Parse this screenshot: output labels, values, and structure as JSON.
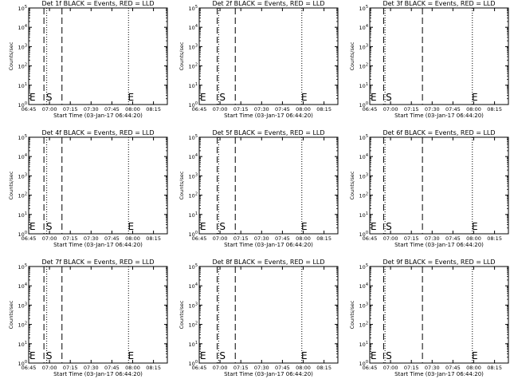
{
  "chart_data": [
    {
      "type": "line",
      "title": "Det 1f BLACK = Events, RED = LLD",
      "xlabel": "Start Time (03-Jan-17 06:44:20)",
      "ylabel": "Counts/sec",
      "x_ticks": [
        "06:45",
        "07:00",
        "07:15",
        "07:30",
        "07:45",
        "08:00",
        "08:15"
      ],
      "y_ticks": [
        {
          "base": "10",
          "exp": "0"
        },
        {
          "base": "10",
          "exp": "1"
        },
        {
          "base": "10",
          "exp": "2"
        },
        {
          "base": "10",
          "exp": "3"
        },
        {
          "base": "10",
          "exp": "4"
        },
        {
          "base": "10",
          "exp": "5"
        }
      ],
      "y_scale": "log",
      "ylim": [
        1,
        100000
      ],
      "dashed_lines": [
        "06:56",
        "07:09"
      ],
      "dotted_lines": [
        "06:58",
        "07:57"
      ],
      "markers": [
        {
          "text": "E",
          "x": "06:45"
        },
        {
          "text": "S",
          "x": "06:57"
        },
        {
          "text": "E",
          "x": "07:56"
        }
      ]
    },
    {
      "type": "line",
      "title": "Det 2f BLACK = Events, RED = LLD",
      "xlabel": "Start Time (03-Jan-17 06:44:20)",
      "ylabel": "Counts/sec",
      "x_ticks": [
        "06:45",
        "07:00",
        "07:15",
        "07:30",
        "07:45",
        "08:00",
        "08:15"
      ],
      "y_ticks": [
        {
          "base": "10",
          "exp": "0"
        },
        {
          "base": "10",
          "exp": "1"
        },
        {
          "base": "10",
          "exp": "2"
        },
        {
          "base": "10",
          "exp": "3"
        },
        {
          "base": "10",
          "exp": "4"
        },
        {
          "base": "10",
          "exp": "5"
        }
      ],
      "y_scale": "log",
      "ylim": [
        1,
        100000
      ],
      "dashed_lines": [
        "06:58",
        "07:11"
      ],
      "dotted_lines": [
        "06:59",
        "07:59"
      ],
      "markers": [
        {
          "text": "E",
          "x": "06:45"
        },
        {
          "text": "S",
          "x": "06:59"
        },
        {
          "text": "E",
          "x": "07:58"
        }
      ]
    },
    {
      "type": "line",
      "title": "Det 3f BLACK = Events, RED = LLD",
      "xlabel": "Start Time (03-Jan-17 06:44:20)",
      "ylabel": "Counts/sec",
      "x_ticks": [
        "06:45",
        "07:00",
        "07:15",
        "07:30",
        "07:45",
        "08:00",
        "08:15"
      ],
      "y_ticks": [
        {
          "base": "10",
          "exp": "0"
        },
        {
          "base": "10",
          "exp": "1"
        },
        {
          "base": "10",
          "exp": "2"
        },
        {
          "base": "10",
          "exp": "3"
        },
        {
          "base": "10",
          "exp": "4"
        },
        {
          "base": "10",
          "exp": "5"
        }
      ],
      "y_scale": "log",
      "ylim": [
        1,
        100000
      ],
      "dashed_lines": [
        "06:55",
        "07:23"
      ],
      "dotted_lines": [
        "06:56",
        "07:59"
      ],
      "markers": [
        {
          "text": "E",
          "x": "06:45"
        },
        {
          "text": "S",
          "x": "06:56"
        },
        {
          "text": "E",
          "x": "07:58"
        }
      ]
    },
    {
      "type": "line",
      "title": "Det 4f BLACK = Events, RED = LLD",
      "xlabel": "Start Time (03-Jan-17 06:44:20)",
      "ylabel": "Counts/sec",
      "x_ticks": [
        "06:45",
        "07:00",
        "07:15",
        "07:30",
        "07:45",
        "08:00",
        "08:15"
      ],
      "y_ticks": [
        {
          "base": "10",
          "exp": "0"
        },
        {
          "base": "10",
          "exp": "1"
        },
        {
          "base": "10",
          "exp": "2"
        },
        {
          "base": "10",
          "exp": "3"
        },
        {
          "base": "10",
          "exp": "4"
        },
        {
          "base": "10",
          "exp": "5"
        }
      ],
      "y_scale": "log",
      "ylim": [
        1,
        100000
      ],
      "dashed_lines": [
        "06:56",
        "07:09"
      ],
      "dotted_lines": [
        "06:58",
        "07:57"
      ],
      "markers": [
        {
          "text": "E",
          "x": "06:45"
        },
        {
          "text": "S",
          "x": "06:57"
        },
        {
          "text": "E",
          "x": "07:56"
        }
      ]
    },
    {
      "type": "line",
      "title": "Det 5f BLACK = Events, RED = LLD",
      "xlabel": "Start Time (03-Jan-17 06:44:20)",
      "ylabel": "Counts/sec",
      "x_ticks": [
        "06:45",
        "07:00",
        "07:15",
        "07:30",
        "07:45",
        "08:00",
        "08:15"
      ],
      "y_ticks": [
        {
          "base": "10",
          "exp": "0"
        },
        {
          "base": "10",
          "exp": "1"
        },
        {
          "base": "10",
          "exp": "2"
        },
        {
          "base": "10",
          "exp": "3"
        },
        {
          "base": "10",
          "exp": "4"
        },
        {
          "base": "10",
          "exp": "5"
        }
      ],
      "y_scale": "log",
      "ylim": [
        1,
        100000
      ],
      "dashed_lines": [
        "06:58",
        "07:11"
      ],
      "dotted_lines": [
        "06:59",
        "07:59"
      ],
      "markers": [
        {
          "text": "E",
          "x": "06:45"
        },
        {
          "text": "S",
          "x": "06:59"
        },
        {
          "text": "E",
          "x": "07:58"
        }
      ]
    },
    {
      "type": "line",
      "title": "Det 6f BLACK = Events, RED = LLD",
      "xlabel": "Start Time (03-Jan-17 06:44:20)",
      "ylabel": "Counts/sec",
      "x_ticks": [
        "06:45",
        "07:00",
        "07:15",
        "07:30",
        "07:45",
        "08:00",
        "08:15"
      ],
      "y_ticks": [
        {
          "base": "10",
          "exp": "0"
        },
        {
          "base": "10",
          "exp": "1"
        },
        {
          "base": "10",
          "exp": "2"
        },
        {
          "base": "10",
          "exp": "3"
        },
        {
          "base": "10",
          "exp": "4"
        },
        {
          "base": "10",
          "exp": "5"
        }
      ],
      "y_scale": "log",
      "ylim": [
        1,
        100000
      ],
      "dashed_lines": [
        "06:55",
        "07:23"
      ],
      "dotted_lines": [
        "06:56",
        "07:59"
      ],
      "markers": [
        {
          "text": "E",
          "x": "06:45"
        },
        {
          "text": "S",
          "x": "06:56"
        },
        {
          "text": "E",
          "x": "07:58"
        }
      ]
    },
    {
      "type": "line",
      "title": "Det 7f BLACK = Events, RED = LLD",
      "xlabel": "Start Time (03-Jan-17 06:44:20)",
      "ylabel": "Counts/sec",
      "x_ticks": [
        "06:45",
        "07:00",
        "07:15",
        "07:30",
        "07:45",
        "08:00",
        "08:15"
      ],
      "y_ticks": [
        {
          "base": "10",
          "exp": "0"
        },
        {
          "base": "10",
          "exp": "1"
        },
        {
          "base": "10",
          "exp": "2"
        },
        {
          "base": "10",
          "exp": "3"
        },
        {
          "base": "10",
          "exp": "4"
        },
        {
          "base": "10",
          "exp": "5"
        }
      ],
      "y_scale": "log",
      "ylim": [
        1,
        100000
      ],
      "dashed_lines": [
        "06:56",
        "07:09"
      ],
      "dotted_lines": [
        "06:58",
        "07:57"
      ],
      "markers": [
        {
          "text": "E",
          "x": "06:45"
        },
        {
          "text": "S",
          "x": "06:57"
        },
        {
          "text": "E",
          "x": "07:56"
        }
      ]
    },
    {
      "type": "line",
      "title": "Det 8f BLACK = Events, RED = LLD",
      "xlabel": "Start Time (03-Jan-17 06:44:20)",
      "ylabel": "Counts/sec",
      "x_ticks": [
        "06:45",
        "07:00",
        "07:15",
        "07:30",
        "07:45",
        "08:00",
        "08:15"
      ],
      "y_ticks": [
        {
          "base": "10",
          "exp": "0"
        },
        {
          "base": "10",
          "exp": "1"
        },
        {
          "base": "10",
          "exp": "2"
        },
        {
          "base": "10",
          "exp": "3"
        },
        {
          "base": "10",
          "exp": "4"
        },
        {
          "base": "10",
          "exp": "5"
        }
      ],
      "y_scale": "log",
      "ylim": [
        1,
        100000
      ],
      "dashed_lines": [
        "06:58",
        "07:11"
      ],
      "dotted_lines": [
        "06:59",
        "07:59"
      ],
      "markers": [
        {
          "text": "E",
          "x": "06:45"
        },
        {
          "text": "S",
          "x": "06:59"
        },
        {
          "text": "E",
          "x": "07:58"
        }
      ]
    },
    {
      "type": "line",
      "title": "Det 9f BLACK = Events, RED = LLD",
      "xlabel": "Start Time (03-Jan-17 06:44:20)",
      "ylabel": "Counts/sec",
      "x_ticks": [
        "06:45",
        "07:00",
        "07:15",
        "07:30",
        "07:45",
        "08:00",
        "08:15"
      ],
      "y_ticks": [
        {
          "base": "10",
          "exp": "0"
        },
        {
          "base": "10",
          "exp": "1"
        },
        {
          "base": "10",
          "exp": "2"
        },
        {
          "base": "10",
          "exp": "3"
        },
        {
          "base": "10",
          "exp": "4"
        },
        {
          "base": "10",
          "exp": "5"
        }
      ],
      "y_scale": "log",
      "ylim": [
        1,
        100000
      ],
      "dashed_lines": [
        "06:55",
        "07:23"
      ],
      "dotted_lines": [
        "06:56",
        "07:59"
      ],
      "markers": [
        {
          "text": "E",
          "x": "06:45"
        },
        {
          "text": "S",
          "x": "06:56"
        },
        {
          "text": "E",
          "x": "07:58"
        }
      ]
    }
  ]
}
